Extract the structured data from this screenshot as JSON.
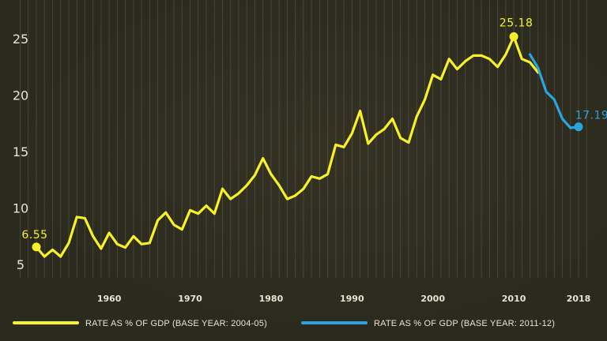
{
  "chart_data": {
    "type": "line",
    "title": "",
    "xlabel": "",
    "ylabel": "",
    "xlim": [
      1951,
      2018
    ],
    "ylim": [
      3.5,
      28
    ],
    "y_ticks": [
      5,
      10,
      15,
      20,
      25
    ],
    "x_ticks": [
      1960,
      1970,
      1980,
      1990,
      2000,
      2010,
      2018
    ],
    "grid": "vertical",
    "legend_position": "bottom",
    "series": [
      {
        "name": "RATE AS % OF GDP (BASE YEAR: 2004-05)",
        "color": "#f7f223",
        "x": [
          1951,
          1952,
          1953,
          1954,
          1955,
          1956,
          1957,
          1958,
          1959,
          1960,
          1961,
          1962,
          1963,
          1964,
          1965,
          1966,
          1967,
          1968,
          1969,
          1970,
          1971,
          1972,
          1973,
          1974,
          1975,
          1976,
          1977,
          1978,
          1979,
          1980,
          1981,
          1982,
          1983,
          1984,
          1985,
          1986,
          1987,
          1988,
          1989,
          1990,
          1991,
          1992,
          1993,
          1994,
          1995,
          1996,
          1997,
          1998,
          1999,
          2000,
          2001,
          2002,
          2003,
          2004,
          2005,
          2006,
          2007,
          2008,
          2009,
          2010,
          2011,
          2012,
          2013
        ],
        "values": [
          6.55,
          5.7,
          6.3,
          5.7,
          6.9,
          9.2,
          9.1,
          7.5,
          6.4,
          7.8,
          6.8,
          6.5,
          7.5,
          6.8,
          6.9,
          8.9,
          9.6,
          8.5,
          8.1,
          9.8,
          9.5,
          10.2,
          9.5,
          11.7,
          10.8,
          11.3,
          12.0,
          12.9,
          14.4,
          13.0,
          12.0,
          10.8,
          11.1,
          11.7,
          12.8,
          12.6,
          13.0,
          15.6,
          15.4,
          16.6,
          18.6,
          15.7,
          16.5,
          17.0,
          17.9,
          16.2,
          15.8,
          18.1,
          19.6,
          21.8,
          21.4,
          23.2,
          22.3,
          23.0,
          23.5,
          23.5,
          23.2,
          22.5,
          23.6,
          25.18,
          23.2,
          22.9,
          22.0
        ]
      },
      {
        "name": "RATE AS % OF GDP (BASE YEAR: 2011-12)",
        "color": "#2aa4dd",
        "x": [
          2012,
          2013,
          2014,
          2015,
          2016,
          2017,
          2018
        ],
        "values": [
          23.6,
          22.4,
          20.3,
          19.6,
          17.9,
          17.1,
          17.19
        ]
      }
    ],
    "annotations": [
      {
        "text": "6.55",
        "x": 1951,
        "y": 6.55,
        "series": 0
      },
      {
        "text": "25.18",
        "x": 2010,
        "y": 25.18,
        "series": 0
      },
      {
        "text": "17.19",
        "x": 2018,
        "y": 17.19,
        "series": 1
      }
    ]
  }
}
